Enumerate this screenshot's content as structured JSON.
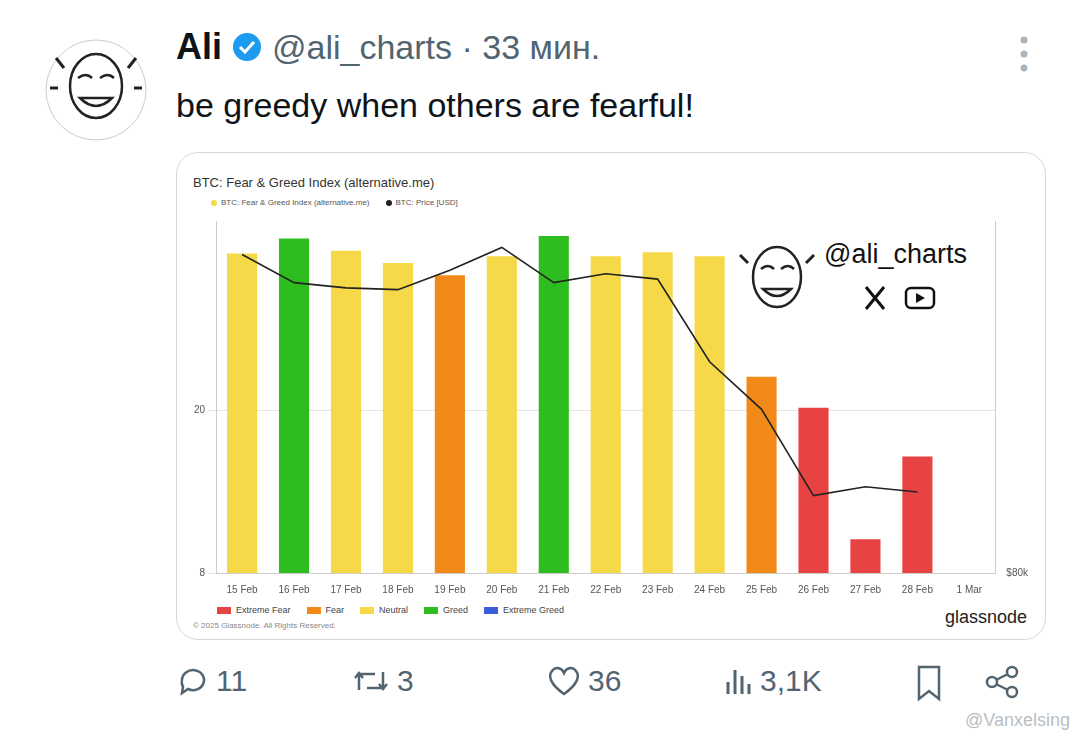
{
  "tweet": {
    "name": "Ali",
    "handle_time": "@ali_charts · 33 мин.",
    "text": "be greedy when others are fearful!",
    "replies": "11",
    "reposts": "3",
    "likes": "36",
    "views": "3,1K",
    "watermark": "@Vanxelsing"
  },
  "chart_data": {
    "type": "bar",
    "title": "BTC: Fear & Greed Index (alternative.me)",
    "categories": [
      "15 Feb",
      "16 Feb",
      "17 Feb",
      "18 Feb",
      "19 Feb",
      "20 Feb",
      "21 Feb",
      "22 Feb",
      "23 Feb",
      "24 Feb",
      "25 Feb",
      "26 Feb",
      "27 Feb",
      "28 Feb",
      "1 Mar"
    ],
    "series": [
      {
        "name": "BTC: Fear & Greed Index (alternative.me)",
        "type": "bar",
        "colors": [
          "#f5d949",
          "#2dbd1f",
          "#f5d949",
          "#f5d949",
          "#f28a1a",
          "#f5d949",
          "#2dbd1f",
          "#f5d949",
          "#f5d949",
          "#f5d949",
          "#f28a1a",
          "#e84343",
          "#e84343",
          "#e84343",
          "#f5d949"
        ],
        "values": [
          31.6,
          32.7,
          31.8,
          30.9,
          30.0,
          31.4,
          32.9,
          31.4,
          31.7,
          31.4,
          22.5,
          20.2,
          10.5,
          16.6,
          null
        ]
      },
      {
        "name": "BTC: Price [USD]",
        "type": "line",
        "color": "#222222",
        "axis": "y2",
        "values": [
          98100,
          96500,
          96200,
          96100,
          97200,
          98500,
          96500,
          97000,
          96700,
          92000,
          89300,
          84400,
          84900,
          84600,
          null
        ]
      }
    ],
    "ylim": [
      8,
      34
    ],
    "yticks": [
      8,
      20
    ],
    "y2lim": [
      80000,
      100000
    ],
    "y2ticks": [
      {
        "value": 80000,
        "label": "$80k"
      }
    ],
    "grid": true,
    "legend": "top",
    "color_legend": [
      {
        "name": "Extreme Fear",
        "color": "#e84343"
      },
      {
        "name": "Fear",
        "color": "#f28a1a"
      },
      {
        "name": "Neutral",
        "color": "#f5d949"
      },
      {
        "name": "Greed",
        "color": "#2dbd1f"
      },
      {
        "name": "Extreme Greed",
        "color": "#3b5bdb"
      }
    ],
    "annotations": {
      "watermark": "@ali_charts",
      "copyright": "© 2025 Glassnode. All Rights Reserved.",
      "brand": "glassnode"
    }
  }
}
